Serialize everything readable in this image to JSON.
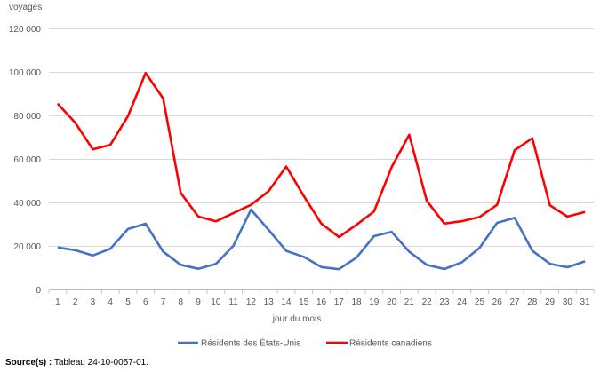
{
  "chart_data": {
    "type": "line",
    "title": "",
    "ylabel": "voyages",
    "xlabel": "jour du mois",
    "ylim": [
      0,
      120000
    ],
    "yticks": [
      0,
      20000,
      40000,
      60000,
      80000,
      100000,
      120000
    ],
    "ytick_labels": [
      "0",
      "20 000",
      "40 000",
      "60 000",
      "80 000",
      "100 000",
      "120 000"
    ],
    "grid": true,
    "legend_position": "bottom",
    "x": [
      1,
      2,
      3,
      4,
      5,
      6,
      7,
      8,
      9,
      10,
      11,
      12,
      13,
      14,
      15,
      16,
      17,
      18,
      19,
      20,
      21,
      22,
      23,
      24,
      25,
      26,
      27,
      28,
      29,
      30,
      31
    ],
    "series": [
      {
        "name": "Résidents des États-Unis",
        "color": "#4472C4",
        "values": [
          19500,
          18200,
          15800,
          18900,
          28000,
          30400,
          17600,
          11500,
          9700,
          11900,
          20300,
          36900,
          27600,
          17900,
          15200,
          10500,
          9500,
          14800,
          24700,
          26700,
          17500,
          11500,
          9600,
          12700,
          19300,
          30800,
          33100,
          18000,
          12000,
          10400,
          13100
        ]
      },
      {
        "name": "Résidents canadiens",
        "color": "#FF0000",
        "values": [
          85600,
          76800,
          64600,
          66700,
          79900,
          99700,
          88100,
          44600,
          33700,
          31500,
          35300,
          39100,
          45400,
          56700,
          43200,
          30500,
          24300,
          29900,
          36100,
          56400,
          71300,
          41000,
          30500,
          31600,
          33500,
          39100,
          64200,
          69700,
          38900,
          33700,
          35800
        ]
      }
    ]
  },
  "source": {
    "label": "Source(s) :",
    "text": " Tableau 24-10-0057-01."
  }
}
